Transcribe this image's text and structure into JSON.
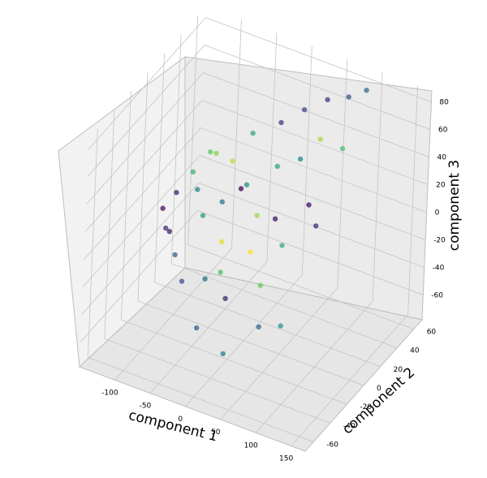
{
  "chart_data": {
    "type": "scatter",
    "projection": "3d",
    "title": "",
    "xlabel": "component 1",
    "ylabel": "component 2",
    "zlabel": "component 3",
    "xlim": [
      -150,
      170
    ],
    "ylim": [
      -70,
      70
    ],
    "zlim": [
      -78,
      88
    ],
    "xticks": [
      "-100",
      "-50",
      "0",
      "50",
      "100",
      "150"
    ],
    "xtick_values": [
      -100,
      -50,
      0,
      50,
      100,
      150
    ],
    "yticks": [
      "-60",
      "-40",
      "-20",
      "0",
      "20",
      "40",
      "60"
    ],
    "ytick_values": [
      -60,
      -40,
      -20,
      0,
      20,
      40,
      60
    ],
    "zticks": [
      "-60",
      "-40",
      "-20",
      "0",
      "20",
      "40",
      "60",
      "80"
    ],
    "ztick_values": [
      -60,
      -40,
      -20,
      0,
      20,
      40,
      60,
      80
    ],
    "grid": true,
    "legend": "none",
    "colormap": "viridis",
    "colormap_colors": [
      "#440154",
      "#3b528b",
      "#21908d",
      "#5dc963",
      "#fde725"
    ],
    "points": [
      {
        "x": -112,
        "y": -8,
        "z": 2,
        "c": 0.05
      },
      {
        "x": -105,
        "y": 2,
        "z": 8,
        "c": 0.1
      },
      {
        "x": -100,
        "y": -14,
        "z": -6,
        "c": 0.15
      },
      {
        "x": -92,
        "y": 10,
        "z": 20,
        "c": 0.65
      },
      {
        "x": -88,
        "y": -20,
        "z": -2,
        "c": 0.08
      },
      {
        "x": -80,
        "y": 20,
        "z": 30,
        "c": 0.75
      },
      {
        "x": -78,
        "y": 4,
        "z": 14,
        "c": 0.45
      },
      {
        "x": -70,
        "y": -28,
        "z": -10,
        "c": 0.3
      },
      {
        "x": -65,
        "y": 14,
        "z": 36,
        "c": 0.82
      },
      {
        "x": -60,
        "y": -4,
        "z": 4,
        "c": 0.55
      },
      {
        "x": -55,
        "y": 26,
        "z": 24,
        "c": 0.9
      },
      {
        "x": -50,
        "y": -36,
        "z": -20,
        "c": 0.25
      },
      {
        "x": -45,
        "y": 6,
        "z": 10,
        "c": 0.4
      },
      {
        "x": -40,
        "y": -16,
        "z": -30,
        "c": 0.35
      },
      {
        "x": -35,
        "y": 32,
        "z": 44,
        "c": 0.6
      },
      {
        "x": -30,
        "y": -6,
        "z": -8,
        "c": 0.95
      },
      {
        "x": -25,
        "y": 18,
        "z": 18,
        "c": 0.5
      },
      {
        "x": -20,
        "y": -42,
        "z": -44,
        "c": 0.3
      },
      {
        "x": -15,
        "y": 2,
        "z": 28,
        "c": 0.02
      },
      {
        "x": -10,
        "y": -24,
        "z": -14,
        "c": 0.7
      },
      {
        "x": -5,
        "y": 40,
        "z": 52,
        "c": 0.2
      },
      {
        "x": 0,
        "y": 10,
        "z": 6,
        "c": 0.85
      },
      {
        "x": 5,
        "y": -30,
        "z": -26,
        "c": 0.12
      },
      {
        "x": 10,
        "y": 24,
        "z": 34,
        "c": 0.58
      },
      {
        "x": 15,
        "y": -10,
        "z": -4,
        "c": 0.99
      },
      {
        "x": 20,
        "y": 46,
        "z": 62,
        "c": 0.22
      },
      {
        "x": 25,
        "y": -48,
        "z": -50,
        "c": 0.42
      },
      {
        "x": 30,
        "y": 6,
        "z": 12,
        "c": 0.07
      },
      {
        "x": 35,
        "y": 30,
        "z": 40,
        "c": 0.48
      },
      {
        "x": 40,
        "y": -18,
        "z": -18,
        "c": 0.77
      },
      {
        "x": 45,
        "y": 52,
        "z": 70,
        "c": 0.18
      },
      {
        "x": 50,
        "y": -2,
        "z": 2,
        "c": 0.62
      },
      {
        "x": 55,
        "y": 36,
        "z": 54,
        "c": 0.87
      },
      {
        "x": 60,
        "y": -36,
        "z": -32,
        "c": 0.33
      },
      {
        "x": 65,
        "y": 16,
        "z": 22,
        "c": 0.04
      },
      {
        "x": 70,
        "y": 56,
        "z": 74,
        "c": 0.27
      },
      {
        "x": 75,
        "y": -22,
        "z": -38,
        "c": 0.52
      },
      {
        "x": 80,
        "y": 42,
        "z": 48,
        "c": 0.68
      },
      {
        "x": 85,
        "y": 8,
        "z": 16,
        "c": 0.14
      },
      {
        "x": 90,
        "y": 60,
        "z": 80,
        "c": 0.37
      }
    ]
  }
}
